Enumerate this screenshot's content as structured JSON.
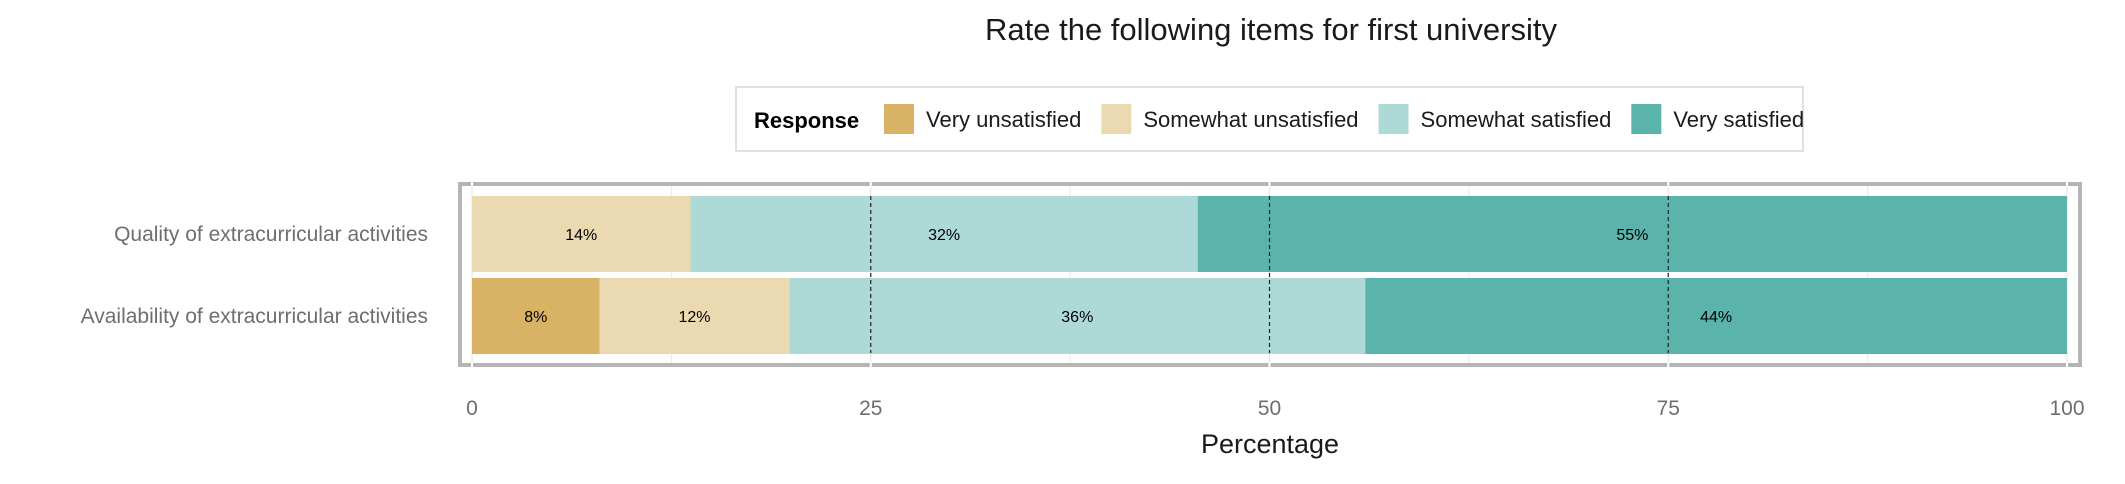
{
  "chart_data": {
    "type": "bar",
    "orientation": "horizontal",
    "stacked": true,
    "title": "Rate the following items for first university",
    "xlabel": "Percentage",
    "ylabel": "",
    "xlim": [
      0,
      100
    ],
    "xticks": [
      0,
      25,
      50,
      75,
      100
    ],
    "grid": true,
    "legend": {
      "title": "Response",
      "position": "top"
    },
    "categories": [
      "Quality of extracurricular activities",
      "Availability of extracurricular activities"
    ],
    "series": [
      {
        "name": "Very unsatisfied",
        "color": "#D8B365",
        "values": [
          0,
          8
        ],
        "labels": [
          "",
          "8%"
        ]
      },
      {
        "name": "Somewhat unsatisfied",
        "color": "#EBD9B2",
        "values": [
          13.7,
          11.9
        ],
        "labels": [
          "14%",
          "12%"
        ]
      },
      {
        "name": "Somewhat satisfied",
        "color": "#ADD9D6",
        "values": [
          31.8,
          36.1
        ],
        "labels": [
          "32%",
          "36%"
        ]
      },
      {
        "name": "Very satisfied",
        "color": "#5AB4AC",
        "values": [
          54.5,
          44
        ],
        "labels": [
          "55%",
          "44%"
        ]
      }
    ]
  }
}
